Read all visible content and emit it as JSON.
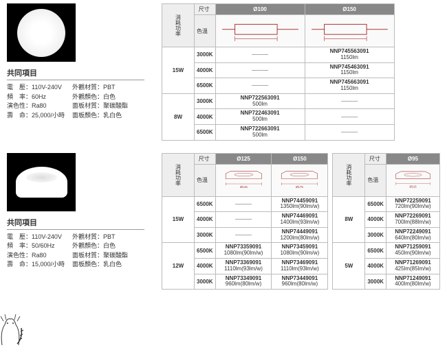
{
  "common_title": "共同項目",
  "s1": {
    "specs": [
      {
        "k": "電　壓：110V-240V",
        "v": "外觀材質：PBT"
      },
      {
        "k": "頻　率：60Hz",
        "v": "外觀顏色：白色"
      },
      {
        "k": "演色性：Ra80",
        "v": "面板材質：聚碳酸酯"
      },
      {
        "k": "壽　命：25,000/小時",
        "v": "面板顏色：乳白色"
      }
    ],
    "hdr": {
      "power": "消耗功率",
      "size": "尺寸",
      "ct": "色溫",
      "d100": "Ø100",
      "d150": "Ø150"
    },
    "rows": [
      {
        "w": "15W",
        "ct": "3000K",
        "c1": "—",
        "c2": {
          "m": "NNP745563091",
          "l": "1150lm"
        }
      },
      {
        "ct": "4000K",
        "c1": "—",
        "c2": {
          "m": "NNP745463091",
          "l": "1150lm"
        }
      },
      {
        "ct": "6500K",
        "c1": "—",
        "c2": {
          "m": "NNP745663091",
          "l": "1150lm"
        }
      },
      {
        "w": "8W",
        "ct": "3000K",
        "c1": {
          "m": "NNP722563091",
          "l": "500lm"
        },
        "c2": "—"
      },
      {
        "ct": "4000K",
        "c1": {
          "m": "NNP722463091",
          "l": "500lm"
        },
        "c2": "—"
      },
      {
        "ct": "6500K",
        "c1": {
          "m": "NNP722663091",
          "l": "500lm"
        },
        "c2": "—"
      }
    ]
  },
  "s2": {
    "specs": [
      {
        "k": "電　壓：110V-240V",
        "v": "外觀材質：PBT"
      },
      {
        "k": "頻　率：50/60Hz",
        "v": "外觀顏色：白色"
      },
      {
        "k": "演色性：Ra80",
        "v": "面板材質：聚碳酸酯"
      },
      {
        "k": "壽　命：15,000/小時",
        "v": "面板顏色：乳白色"
      }
    ],
    "hdr": {
      "power": "消耗功率",
      "size": "尺寸",
      "ct": "色溫",
      "d125": "Ø125",
      "d150": "Ø150",
      "d95": "Ø95"
    },
    "t1": [
      {
        "w": "15W",
        "ct": "6500K",
        "c1": "—",
        "c2": {
          "m": "NNP74459091",
          "l": "1350lm(90lm/w)"
        }
      },
      {
        "ct": "4000K",
        "c1": "—",
        "c2": {
          "m": "NNP74469091",
          "l": "1400lm(93lm/w)"
        }
      },
      {
        "ct": "3000K",
        "c1": "—",
        "c2": {
          "m": "NNP74449091",
          "l": "1200lm(80lm/w)"
        }
      },
      {
        "w": "12W",
        "ct": "6500K",
        "c1": {
          "m": "NNP73359091",
          "l": "1080lm(90lm/w)"
        },
        "c2": {
          "m": "NNP73459091",
          "l": "1080lm(90lm/w)"
        }
      },
      {
        "ct": "4000K",
        "c1": {
          "m": "NNP73369091",
          "l": "1110lm(93lm/w)"
        },
        "c2": {
          "m": "NNP73469091",
          "l": "1110lm(93lm/w)"
        }
      },
      {
        "ct": "3000K",
        "c1": {
          "m": "NNP73349091",
          "l": "960lm(80lm/w)"
        },
        "c2": {
          "m": "NNP73449091",
          "l": "960lm(80lm/w)"
        }
      }
    ],
    "t2": [
      {
        "w": "8W",
        "ct": "6500K",
        "c": {
          "m": "NNP72259091",
          "l": "720lm(90lm/w)"
        }
      },
      {
        "ct": "4000K",
        "c": {
          "m": "NNP72269091",
          "l": "700lm(88lm/w)"
        }
      },
      {
        "ct": "3000K",
        "c": {
          "m": "NNP72249091",
          "l": "640lm(80lm/w)"
        }
      },
      {
        "w": "5W",
        "ct": "6500K",
        "c": {
          "m": "NNP71259091",
          "l": "450lm(90lm/w)"
        }
      },
      {
        "ct": "4000K",
        "c": {
          "m": "NNP71269091",
          "l": "425lm(85lm/w)"
        }
      },
      {
        "ct": "3000K",
        "c": {
          "m": "NNP71249091",
          "l": "400lm(80lm/w)"
        }
      }
    ],
    "dims": {
      "d125": "Ø145",
      "d150": "Ø175",
      "d95": "Ø115"
    }
  }
}
